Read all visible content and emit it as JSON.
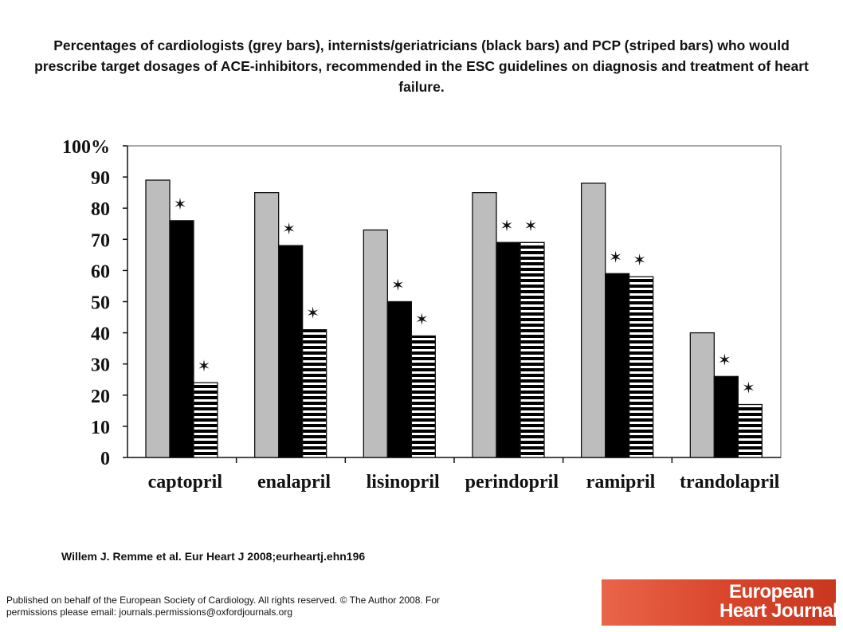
{
  "header": {
    "title": "Percentages of cardiologists (grey bars), internists/geriatricians (black bars) and PCP (striped bars) who would prescribe target dosages of ACE-inhibitors, recommended in the ESC guidelines on diagnosis and treatment of heart failure."
  },
  "citation": "Willem J. Remme et al. Eur Heart J 2008;eurheartj.ehn196",
  "footer": {
    "copyright": "Published on behalf of the European Society of Cardiology. All rights reserved. © The Author 2008. For permissions please email: journals.permissions@oxfordjournals.org"
  },
  "logo": {
    "line1": "European",
    "line2": "Heart Journal"
  },
  "colors": {
    "grey_bar": "#bdbdbd",
    "black_bar": "#000000",
    "striped_bar_stripe": "#000000",
    "striped_bar_bg": "#ffffff",
    "logo_bg": "#d8452b"
  },
  "chart_data": {
    "type": "bar",
    "categories": [
      "captopril",
      "enalapril",
      "lisinopril",
      "perindopril",
      "ramipril",
      "trandolapril"
    ],
    "series": [
      {
        "style": "grey",
        "values": [
          89,
          85,
          73,
          85,
          88,
          40
        ]
      },
      {
        "style": "black",
        "values": [
          76,
          68,
          50,
          69,
          59,
          26
        ]
      },
      {
        "style": "striped",
        "values": [
          24,
          41,
          39,
          69,
          58,
          17
        ]
      }
    ],
    "significance_markers": [
      {
        "category": "captopril",
        "series_index": 1
      },
      {
        "category": "captopril",
        "series_index": 2
      },
      {
        "category": "enalapril",
        "series_index": 1
      },
      {
        "category": "enalapril",
        "series_index": 2
      },
      {
        "category": "lisinopril",
        "series_index": 1
      },
      {
        "category": "lisinopril",
        "series_index": 2
      },
      {
        "category": "perindopril",
        "series_index": 1
      },
      {
        "category": "perindopril",
        "series_index": 2
      },
      {
        "category": "ramipril",
        "series_index": 1
      },
      {
        "category": "ramipril",
        "series_index": 2
      },
      {
        "category": "trandolapril",
        "series_index": 1
      },
      {
        "category": "trandolapril",
        "series_index": 2
      }
    ],
    "marker_symbol": "✶",
    "y_tick_labels": [
      "0",
      "10",
      "20",
      "30",
      "40",
      "50",
      "60",
      "70",
      "80",
      "90",
      "100%"
    ],
    "ylim": [
      0,
      100
    ],
    "grid": false,
    "legend": "none",
    "title": "",
    "xlabel": "",
    "ylabel": ""
  }
}
